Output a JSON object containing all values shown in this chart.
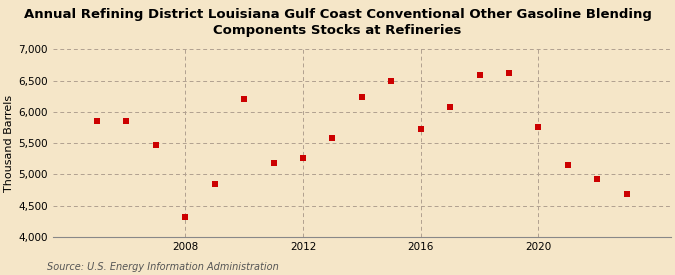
{
  "title": "Annual Refining District Louisiana Gulf Coast Conventional Other Gasoline Blending\nComponents Stocks at Refineries",
  "ylabel": "Thousand Barrels",
  "source": "Source: U.S. Energy Information Administration",
  "background_color": "#f5e6c8",
  "marker_color": "#cc0000",
  "years": [
    2005,
    2006,
    2007,
    2008,
    2009,
    2010,
    2011,
    2012,
    2013,
    2014,
    2015,
    2016,
    2017,
    2018,
    2019,
    2020,
    2021,
    2022,
    2023
  ],
  "values": [
    5850,
    5850,
    5470,
    4310,
    4840,
    6200,
    5185,
    5260,
    5580,
    6230,
    6490,
    5730,
    6080,
    6590,
    6620,
    5750,
    5150,
    4930,
    4680
  ],
  "ylim": [
    4000,
    7000
  ],
  "yticks": [
    4000,
    4500,
    5000,
    5500,
    6000,
    6500,
    7000
  ],
  "xticks": [
    2008,
    2012,
    2016,
    2020
  ],
  "grid_color": "#b0a090",
  "title_fontsize": 9.5,
  "label_fontsize": 8,
  "tick_fontsize": 7.5,
  "source_fontsize": 7
}
